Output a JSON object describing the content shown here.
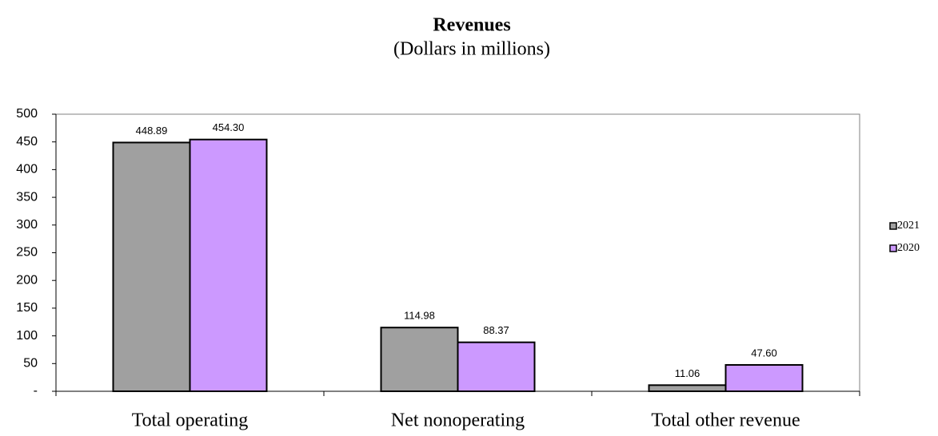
{
  "chart_data": {
    "type": "bar",
    "title": "Revenues",
    "subtitle": "(Dollars in millions)",
    "categories": [
      "Total operating",
      "Net nonoperating",
      "Total other revenue"
    ],
    "series": [
      {
        "name": "2021",
        "color": "#a0a0a0",
        "values": [
          448.89,
          114.98,
          11.06
        ],
        "value_labels": [
          "448.89",
          "114.98",
          "11.06"
        ]
      },
      {
        "name": "2020",
        "color": "#cc99ff",
        "values": [
          454.3,
          88.37,
          47.6
        ],
        "value_labels": [
          "454.30",
          "88.37",
          "47.60"
        ]
      }
    ],
    "ylim": [
      0,
      500
    ],
    "yticks": [
      {
        "value": 0,
        "label": "-"
      },
      50,
      100,
      150,
      200,
      250,
      300,
      350,
      400,
      450,
      500
    ],
    "legend": "right"
  }
}
